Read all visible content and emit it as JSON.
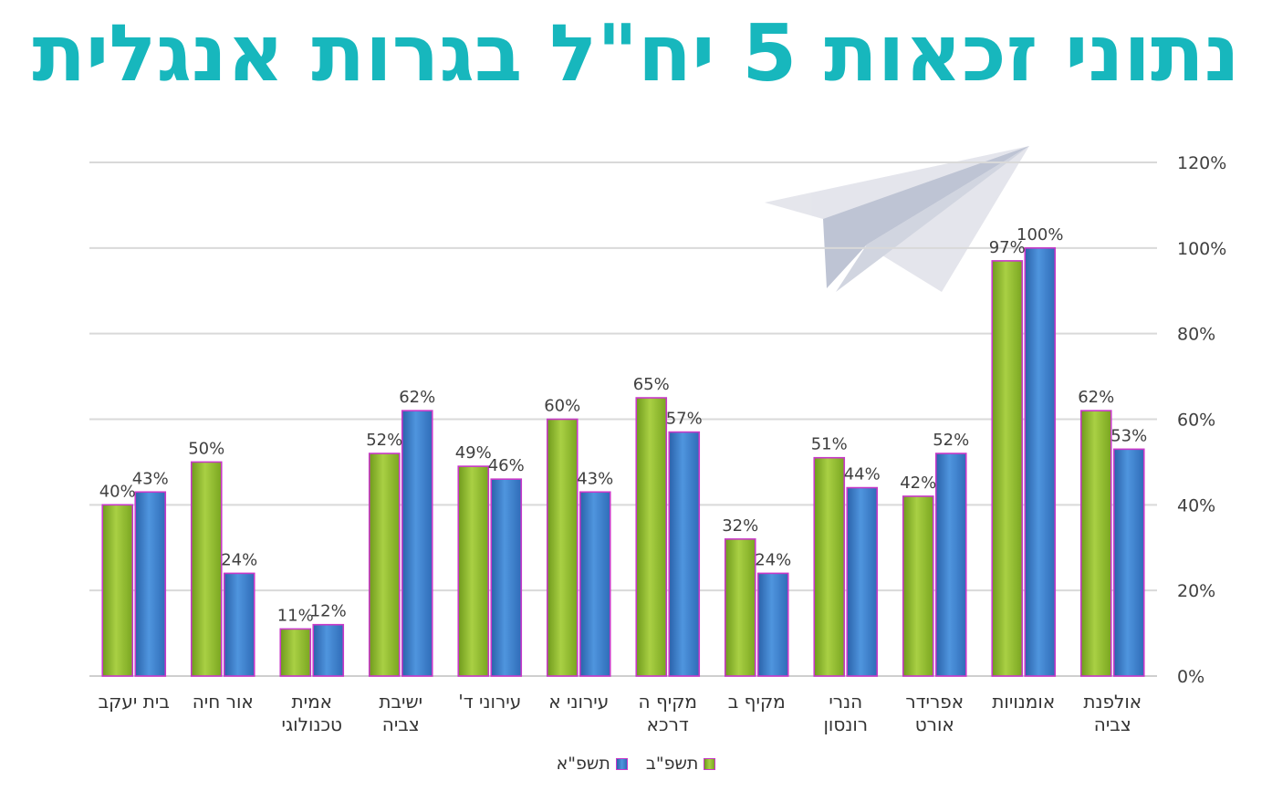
{
  "title": "נתוני זכאות 5 יח\"ל בגרות אנגלית",
  "colors": {
    "title": "#17b7bd",
    "series_1": "#8ebd2a",
    "series_2": "#3f82cf",
    "bar_outline": "#c838c8",
    "grid": "#d9d9d9",
    "plane": "#b9bfd0"
  },
  "decoration": "paper-plane-icon",
  "chart_data": {
    "type": "bar",
    "orientation": "vertical",
    "x_axis_direction": "right-to-left",
    "categories": [
      "אולפנת צביה",
      "אומנויות",
      "אפרידר אורט",
      "הנרי רונסון",
      "מקיף ב",
      "מקיף ה דרכא",
      "עירוני א",
      "עירוני ד'",
      "ישיבת צביה",
      "אמית טכנולוגי",
      "אור חיה",
      "בית יעקב"
    ],
    "series": [
      {
        "name": "תשפ\"ב",
        "values": [
          62,
          97,
          42,
          51,
          32,
          65,
          60,
          49,
          52,
          11,
          50,
          40
        ]
      },
      {
        "name": "תשפ\"א",
        "values": [
          53,
          100,
          52,
          44,
          24,
          57,
          43,
          46,
          62,
          12,
          24,
          43
        ]
      }
    ],
    "data_labels": [
      [
        "62%",
        "97%",
        "42%",
        "51%",
        "32%",
        "65%",
        "60%",
        "49%",
        "52%",
        "11%",
        "50%",
        "40%"
      ],
      [
        "53%",
        "100%",
        "52%",
        "44%",
        "24%",
        "57%",
        "43%",
        "46%",
        "62%",
        "12%",
        "24%",
        "43%"
      ]
    ],
    "y_ticks": [
      0,
      20,
      40,
      60,
      80,
      100,
      120
    ],
    "y_tick_labels": [
      "0%",
      "20%",
      "40%",
      "60%",
      "80%",
      "100%",
      "120%"
    ],
    "y_axis_position": "right",
    "ylim": [
      0,
      120
    ],
    "grid": true,
    "legend_position": "bottom"
  }
}
